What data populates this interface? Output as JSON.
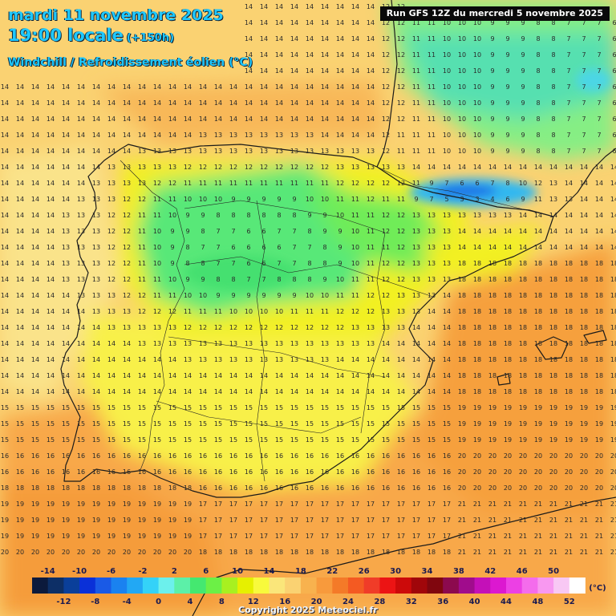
{
  "header": {
    "date": "mardi 11 novembre 2025",
    "time": "19:00 locale",
    "lead": "(+150h)",
    "parameter": "Windchill / Refroidissement éolien (°C)",
    "run": "Run GFS 12Z du mercredi 5 novembre 2025"
  },
  "legend": {
    "unit": "(°C)",
    "top_labels": [
      "-14",
      "-10",
      "-6",
      "-2",
      "2",
      "6",
      "10",
      "14",
      "18",
      "22",
      "26",
      "30",
      "34",
      "38",
      "42",
      "46",
      "50"
    ],
    "bottom_labels": [
      "-12",
      "-8",
      "-4",
      "0",
      "4",
      "8",
      "12",
      "16",
      "20",
      "24",
      "28",
      "32",
      "36",
      "40",
      "44",
      "48",
      "52"
    ],
    "colors": [
      "#0c1a3c",
      "#0d2f66",
      "#0a3f9a",
      "#0a30d8",
      "#1a5ae6",
      "#1a82f0",
      "#22a8f4",
      "#34d2f8",
      "#6cf0ec",
      "#5cf0a8",
      "#44e870",
      "#6cf046",
      "#a8f020",
      "#e6f000",
      "#f8fa3c",
      "#fae67a",
      "#fad272",
      "#f8b24e",
      "#f89a3c",
      "#f47a28",
      "#f45a22",
      "#f03c28",
      "#ec1414",
      "#cc0a0a",
      "#a0060a",
      "#80060e",
      "#8c0a4e",
      "#a00c8c",
      "#c410b8",
      "#dc18d0",
      "#ec40e4",
      "#f46cec",
      "#f898f0",
      "#f8c8f4",
      "#ffffff"
    ]
  },
  "copyright": "Copyright 2025 Meteociel.fr"
}
